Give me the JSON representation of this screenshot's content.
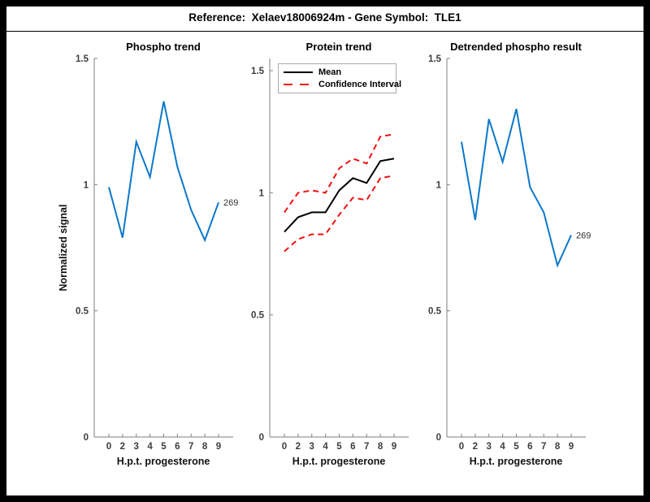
{
  "figure": {
    "title": "Reference:  Xelaev18006924m - Gene Symbol:  TLE1"
  },
  "colors": {
    "line_blue": "#0d78c9",
    "mean_black": "#000000",
    "ci_red": "#f21010",
    "axis_gray": "#7f7f7f",
    "background": "#ffffff",
    "frame": "#000000"
  },
  "chart_data": [
    {
      "type": "line",
      "title": "Phospho trend",
      "xlabel": "H.p.t. progesterone",
      "ylabel": "Normalized signal",
      "x": [
        0,
        2,
        3,
        4,
        5,
        6,
        7,
        8,
        9
      ],
      "x_tick_labels": [
        "0",
        "2",
        "3",
        "4",
        "5",
        "6",
        "7",
        "8",
        "9"
      ],
      "yticks": [
        0,
        0.5,
        1,
        1.5
      ],
      "ytick_labels": [
        "0",
        "0.5",
        "1",
        "1.5"
      ],
      "ylim": [
        0,
        1.5
      ],
      "grid": false,
      "layout_hint": "points equally spaced along x",
      "series": [
        {
          "name": "phospho-signal",
          "values": [
            0.99,
            0.79,
            1.17,
            1.03,
            1.33,
            1.07,
            0.9,
            0.78,
            0.93
          ],
          "color": "#0d78c9",
          "style": "solid",
          "width": 2
        }
      ],
      "end_label": "269",
      "legend": null
    },
    {
      "type": "line",
      "title": "Protein trend",
      "xlabel": "H.p.t. progesterone",
      "ylabel": "",
      "x": [
        0,
        2,
        3,
        4,
        5,
        6,
        7,
        8,
        9
      ],
      "x_tick_labels": [
        "0",
        "2",
        "3",
        "4",
        "5",
        "6",
        "7",
        "8",
        "9"
      ],
      "yticks": [
        0,
        0.5,
        1,
        1.5
      ],
      "ytick_labels": [
        "0",
        "0.5",
        "1",
        "1.5"
      ],
      "ylim": [
        0,
        1.55
      ],
      "grid": false,
      "layout_hint": "legend box top-left inside axes",
      "series": [
        {
          "name": "ci-upper",
          "values": [
            0.92,
            1.0,
            1.01,
            1.0,
            1.1,
            1.14,
            1.12,
            1.23,
            1.24
          ],
          "color": "#f21010",
          "style": "dashed",
          "width": 2
        },
        {
          "name": "ci-lower",
          "values": [
            0.76,
            0.81,
            0.83,
            0.83,
            0.91,
            0.98,
            0.97,
            1.06,
            1.07
          ],
          "color": "#f21010",
          "style": "dashed",
          "width": 2
        },
        {
          "name": "mean",
          "values": [
            0.84,
            0.9,
            0.92,
            0.92,
            1.01,
            1.06,
            1.04,
            1.13,
            1.14
          ],
          "color": "#000000",
          "style": "solid",
          "width": 2
        }
      ],
      "end_label": null,
      "legend": [
        {
          "label": "Mean",
          "color": "#000000",
          "style": "solid"
        },
        {
          "label": "Confidence Interval",
          "color": "#f21010",
          "style": "dashed"
        }
      ]
    },
    {
      "type": "line",
      "title": "Detrended phospho result",
      "xlabel": "H.p.t. progesterone",
      "ylabel": "",
      "x": [
        0,
        2,
        3,
        4,
        5,
        6,
        7,
        8,
        9
      ],
      "x_tick_labels": [
        "0",
        "2",
        "3",
        "4",
        "5",
        "6",
        "7",
        "8",
        "9"
      ],
      "yticks": [
        0,
        0.5,
        1,
        1.5
      ],
      "ytick_labels": [
        "0",
        "0.5",
        "1",
        "1.5"
      ],
      "ylim": [
        0,
        1.5
      ],
      "grid": false,
      "layout_hint": "points equally spaced along x",
      "series": [
        {
          "name": "detrended-phospho",
          "values": [
            1.17,
            0.86,
            1.26,
            1.09,
            1.3,
            0.99,
            0.89,
            0.68,
            0.8
          ],
          "color": "#0d78c9",
          "style": "solid",
          "width": 2
        }
      ],
      "end_label": "269",
      "legend": null
    }
  ]
}
